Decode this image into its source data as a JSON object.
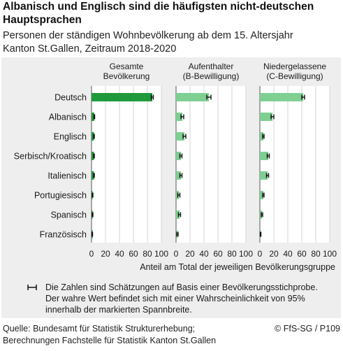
{
  "header": {
    "title_line1": "Albanisch und Englisch sind die häufigsten nicht-deutschen",
    "title_line2": "Hauptsprachen",
    "subtitle_line1": "Personen der ständigen Wohnbevölkerung ab dem 15. Altersjahr",
    "subtitle_line2": "Kanton St.Gallen, Zeitraum 2018-2020"
  },
  "chart_data": {
    "type": "bar",
    "orientation": "horizontal",
    "categories": [
      "Deutsch",
      "Albanisch",
      "Englisch",
      "Serbisch/Kroatisch",
      "Italienisch",
      "Portugiesisch",
      "Spanisch",
      "Französisch"
    ],
    "series": [
      {
        "name_line1": "Gesamte",
        "name_line2": "Bevölkerung",
        "color": "#1e9a3c",
        "values": [
          87,
          4,
          3.5,
          3.5,
          3.5,
          1.5,
          1.5,
          1
        ],
        "error": [
          1.5,
          0.5,
          0.5,
          0.5,
          0.5,
          0.5,
          0.5,
          0.5
        ]
      },
      {
        "name_line1": "Aufenthalter",
        "name_line2": "(B-Bewilligung)",
        "color": "#7fcf93",
        "values": [
          47,
          9,
          12,
          7,
          7,
          4,
          5,
          2
        ],
        "error": [
          3,
          2,
          2,
          1.5,
          1.5,
          1.5,
          1.5,
          1
        ]
      },
      {
        "name_line1": "Niedergelassene",
        "name_line2": "(C-Bewilligung)",
        "color": "#7fcf93",
        "values": [
          62,
          18,
          5,
          12,
          11,
          5,
          3,
          1
        ],
        "error": [
          2,
          2,
          1,
          1.5,
          1.5,
          1,
          1,
          0.5
        ]
      }
    ],
    "xlim": [
      0,
      100
    ],
    "xticks": [
      "0",
      "20",
      "40",
      "60",
      "80",
      "100"
    ],
    "xlabel": "Anteil am Total der jeweiligen Bevölkerungsgruppe",
    "grid": "vertical",
    "legend": {
      "icon": "error-bar-icon",
      "line1": "Die Zahlen sind Schätzungen auf Basis einer Bevölkerungsstichprobe.",
      "line2": "Der wahre Wert befindet sich mit einer Wahrscheinlichkeit von 95%",
      "line3": "innerhalb der markierten Spannbreite."
    }
  },
  "footer": {
    "source_line1": "Quelle: Bundesamt für Statistik Strukturerhebung;",
    "source_line2": "Berechnungen Fachstelle für Statistik Kanton St.Gallen",
    "copyright": "© FfS-SG / P109"
  }
}
